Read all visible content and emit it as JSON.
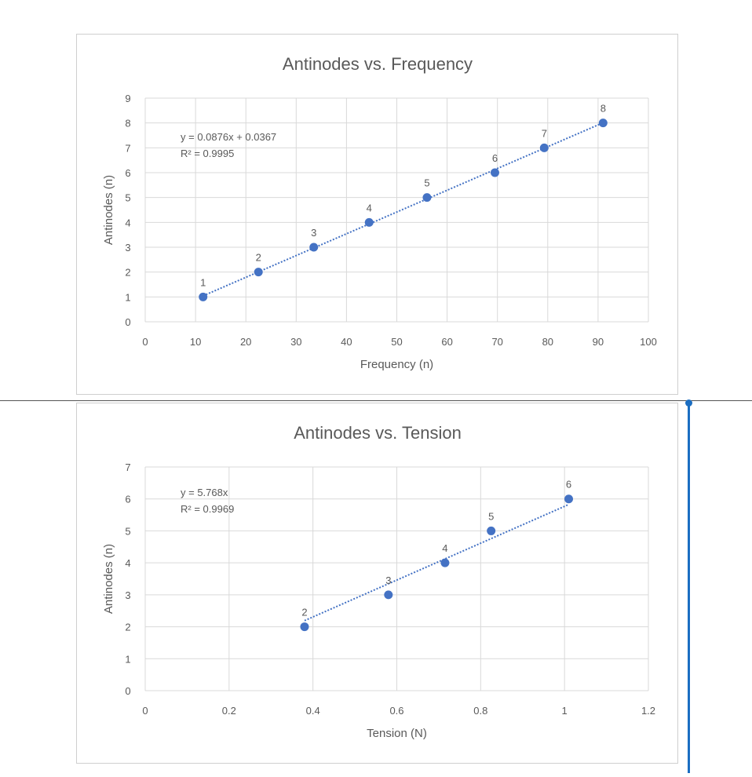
{
  "colors": {
    "marker": "#4472c4",
    "trendline": "#4472c4",
    "grid": "#d9d9d9",
    "axis_text": "#595959",
    "title_text": "#595959",
    "cursor": "#1b6ec2"
  },
  "chart_data": [
    {
      "type": "scatter",
      "title": "Antinodes vs. Frequency",
      "xlabel": "Frequency (n)",
      "ylabel": "Antinodes (n)",
      "xlim": [
        0,
        100
      ],
      "ylim": [
        0,
        9
      ],
      "x_ticks": [
        0,
        10,
        20,
        30,
        40,
        50,
        60,
        70,
        80,
        90,
        100
      ],
      "y_ticks": [
        0,
        1,
        2,
        3,
        4,
        5,
        6,
        7,
        8,
        9
      ],
      "grid": true,
      "series": [
        {
          "x": [
            11.5,
            22.5,
            33.5,
            44.5,
            56,
            69.5,
            79.3,
            91
          ],
          "y": [
            1,
            2,
            3,
            4,
            5,
            6,
            7,
            8
          ],
          "labels": [
            "1",
            "2",
            "3",
            "4",
            "5",
            "6",
            "7",
            "8"
          ]
        }
      ],
      "trendline": {
        "slope": 0.0876,
        "intercept": 0.0367,
        "x_from": 11.5,
        "x_to": 91
      },
      "equation": "y = 0.0876x + 0.0367",
      "r_squared": "R² = 0.9995"
    },
    {
      "type": "scatter",
      "title": "Antinodes vs. Tension",
      "xlabel": "Tension (N)",
      "ylabel": "Antinodes (n)",
      "xlim": [
        0,
        1.2
      ],
      "ylim": [
        0,
        7
      ],
      "x_ticks": [
        "0",
        "0.2",
        "0.4",
        "0.6",
        "0.8",
        "1",
        "1.2"
      ],
      "y_ticks": [
        0,
        1,
        2,
        3,
        4,
        5,
        6,
        7
      ],
      "grid": true,
      "series": [
        {
          "x": [
            0.38,
            0.58,
            0.715,
            0.825,
            1.01
          ],
          "y": [
            2,
            3,
            4,
            5,
            6
          ],
          "labels": [
            "2",
            "3",
            "4",
            "5",
            "6"
          ]
        }
      ],
      "trendline": {
        "slope": 5.768,
        "intercept": 0,
        "x_from": 0.38,
        "x_to": 1.01
      },
      "equation": "y = 5.768x",
      "r_squared": "R² = 0.9969"
    }
  ]
}
